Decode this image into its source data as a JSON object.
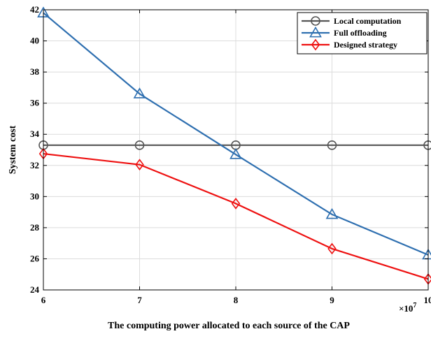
{
  "chart_data": {
    "type": "line",
    "title": "",
    "xlabel": "The computing power allocated to each source of the CAP",
    "ylabel": "System cost",
    "x_exponent_label": "×10",
    "x_exponent_power": "7",
    "x": [
      6,
      7,
      8,
      9,
      10
    ],
    "xlim": [
      6,
      10
    ],
    "ylim": [
      24,
      42
    ],
    "x_ticks": [
      6,
      7,
      8,
      9,
      10
    ],
    "y_ticks": [
      24,
      26,
      28,
      30,
      32,
      34,
      36,
      38,
      40,
      42
    ],
    "grid": true,
    "legend_position": "top-right",
    "series": [
      {
        "name": "Local computation",
        "values": [
          33.3,
          33.3,
          33.3,
          33.3,
          33.3
        ],
        "color": "#555555",
        "marker": "circle"
      },
      {
        "name": "Full offloading",
        "values": [
          41.8,
          36.6,
          32.7,
          28.85,
          26.25
        ],
        "color": "#2e6fb0",
        "marker": "triangle"
      },
      {
        "name": "Designed strategy",
        "values": [
          32.75,
          32.05,
          29.55,
          26.65,
          24.7
        ],
        "color": "#ee1111",
        "marker": "diamond"
      }
    ]
  }
}
